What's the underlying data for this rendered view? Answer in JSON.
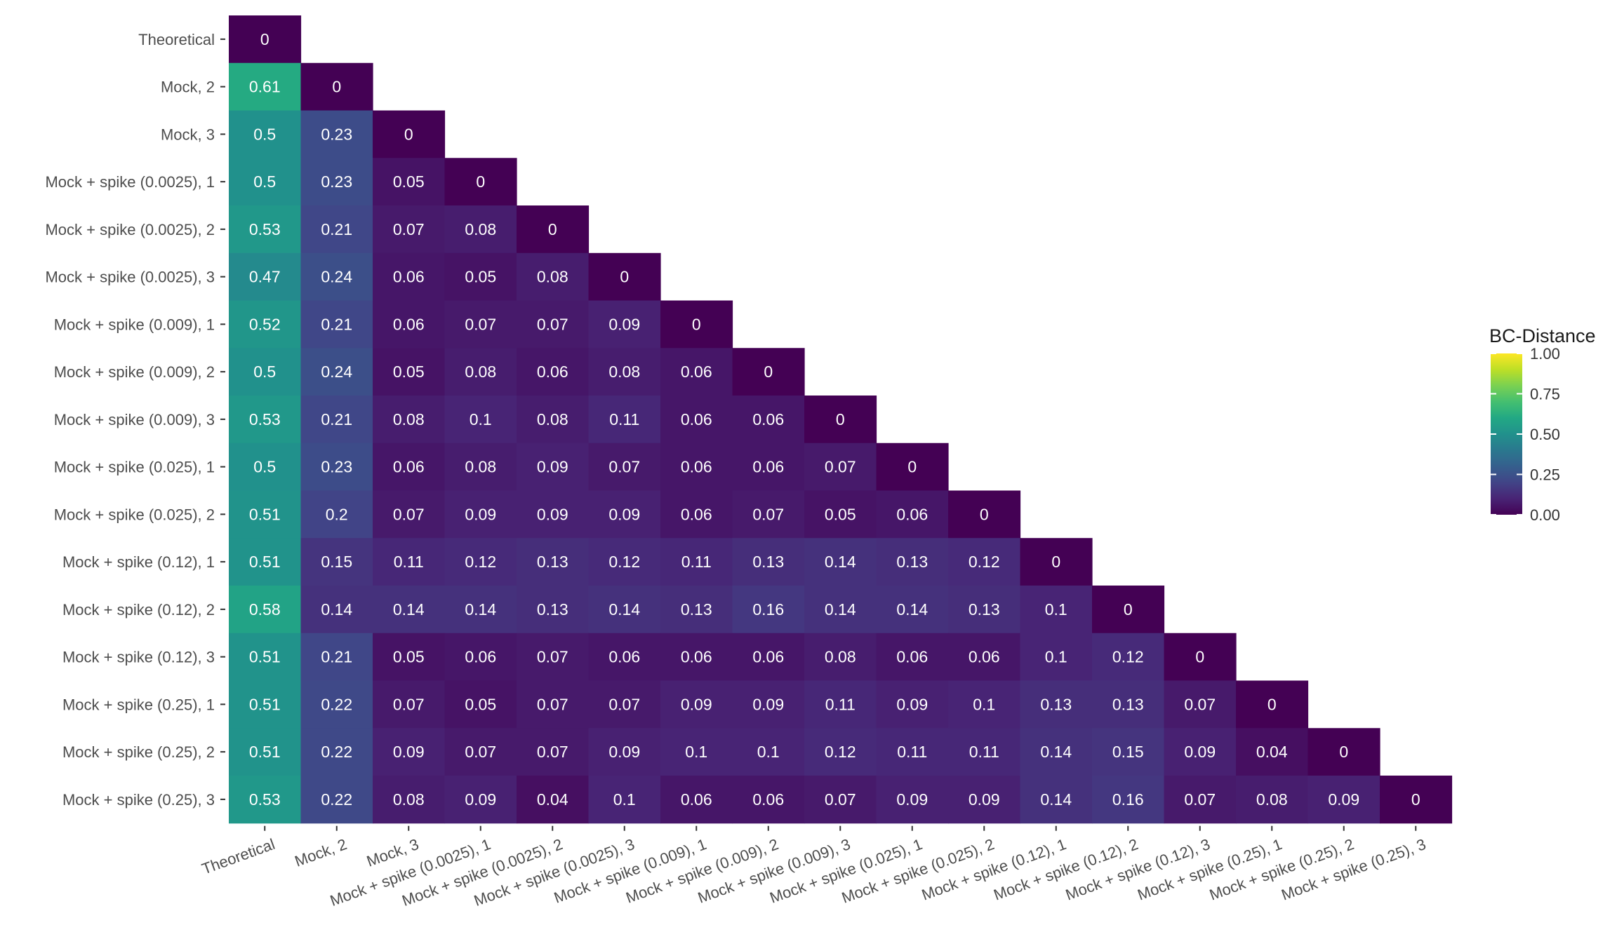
{
  "chart_data": {
    "type": "heatmap",
    "title": "",
    "xlabel": "",
    "ylabel": "",
    "labels": [
      "Theoretical",
      "Mock, 2",
      "Mock, 3",
      "Mock + spike (0.0025), 1",
      "Mock + spike (0.0025), 2",
      "Mock + spike (0.0025), 3",
      "Mock + spike (0.009), 1",
      "Mock + spike (0.009), 2",
      "Mock + spike (0.009), 3",
      "Mock + spike (0.025), 1",
      "Mock + spike (0.025), 2",
      "Mock + spike (0.12), 1",
      "Mock + spike (0.12), 2",
      "Mock + spike (0.12), 3",
      "Mock + spike (0.25), 1",
      "Mock + spike (0.25), 2",
      "Mock + spike (0.25), 3"
    ],
    "matrix_lower_triangle": [
      [
        0
      ],
      [
        0.61,
        0
      ],
      [
        0.5,
        0.23,
        0
      ],
      [
        0.5,
        0.23,
        0.05,
        0
      ],
      [
        0.53,
        0.21,
        0.07,
        0.08,
        0
      ],
      [
        0.47,
        0.24,
        0.06,
        0.05,
        0.08,
        0
      ],
      [
        0.52,
        0.21,
        0.06,
        0.07,
        0.07,
        0.09,
        0
      ],
      [
        0.5,
        0.24,
        0.05,
        0.08,
        0.06,
        0.08,
        0.06,
        0
      ],
      [
        0.53,
        0.21,
        0.08,
        0.1,
        0.08,
        0.11,
        0.06,
        0.06,
        0
      ],
      [
        0.5,
        0.23,
        0.06,
        0.08,
        0.09,
        0.07,
        0.06,
        0.06,
        0.07,
        0
      ],
      [
        0.51,
        0.2,
        0.07,
        0.09,
        0.09,
        0.09,
        0.06,
        0.07,
        0.05,
        0.06,
        0
      ],
      [
        0.51,
        0.15,
        0.11,
        0.12,
        0.13,
        0.12,
        0.11,
        0.13,
        0.14,
        0.13,
        0.12,
        0
      ],
      [
        0.58,
        0.14,
        0.14,
        0.14,
        0.13,
        0.14,
        0.13,
        0.16,
        0.14,
        0.14,
        0.13,
        0.1,
        0
      ],
      [
        0.51,
        0.21,
        0.05,
        0.06,
        0.07,
        0.06,
        0.06,
        0.06,
        0.08,
        0.06,
        0.06,
        0.1,
        0.12,
        0
      ],
      [
        0.51,
        0.22,
        0.07,
        0.05,
        0.07,
        0.07,
        0.09,
        0.09,
        0.11,
        0.09,
        0.1,
        0.13,
        0.13,
        0.07,
        0
      ],
      [
        0.51,
        0.22,
        0.09,
        0.07,
        0.07,
        0.09,
        0.1,
        0.1,
        0.12,
        0.11,
        0.11,
        0.14,
        0.15,
        0.09,
        0.04,
        0
      ],
      [
        0.53,
        0.22,
        0.08,
        0.09,
        0.04,
        0.1,
        0.06,
        0.06,
        0.07,
        0.09,
        0.09,
        0.14,
        0.16,
        0.07,
        0.08,
        0.09,
        0
      ]
    ],
    "color_range": [
      0,
      1
    ],
    "colormap": "viridis",
    "legend": {
      "title": "BC-Distance",
      "ticks": [
        "1.00",
        "0.75",
        "0.50",
        "0.25",
        "0.00"
      ],
      "tick_values": [
        1,
        0.75,
        0.5,
        0.25,
        0
      ],
      "placement": "right"
    },
    "grid": false
  }
}
